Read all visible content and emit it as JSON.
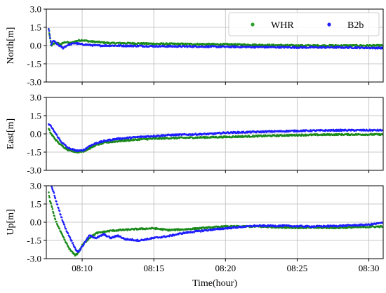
{
  "chart_data": {
    "type": "scatter",
    "xlabel": "Time(hour)",
    "x_range": [
      "08:07:30",
      "08:31:00"
    ],
    "x_ticks": [
      "08:10",
      "08:15",
      "08:20",
      "08:25",
      "08:30"
    ],
    "y_ticks": [
      "3.0",
      "1.5",
      "0.0",
      "-1.5",
      "-3.0"
    ],
    "legend": {
      "placement": "upper-right of first panel",
      "entries": [
        {
          "label": "WHR",
          "color": "#2ca02c"
        },
        {
          "label": "B2b",
          "color": "#1f1fff"
        }
      ]
    },
    "grid": true,
    "panels": [
      {
        "ylabel": "North[m]",
        "ylim": [
          -3.0,
          3.0
        ],
        "series": [
          {
            "name": "WHR",
            "color": "#1a8a1a",
            "points": [
              [
                "08:07:40",
                1.3
              ],
              [
                "08:07:50",
                0.0
              ],
              [
                "08:08:10",
                0.25
              ],
              [
                "08:08:30",
                0.1
              ],
              [
                "08:08:50",
                0.3
              ],
              [
                "08:09:10",
                0.2
              ],
              [
                "08:09:40",
                0.4
              ],
              [
                "08:10:00",
                0.45
              ],
              [
                "08:10:30",
                0.35
              ],
              [
                "08:11:00",
                0.3
              ],
              [
                "08:12:00",
                0.2
              ],
              [
                "08:13:00",
                0.2
              ],
              [
                "08:15:00",
                0.15
              ],
              [
                "08:20:00",
                0.1
              ],
              [
                "08:25:00",
                0.0
              ],
              [
                "08:28:00",
                0.0
              ],
              [
                "08:31:00",
                0.0
              ]
            ]
          },
          {
            "name": "B2b",
            "color": "#1f1fff",
            "points": [
              [
                "08:07:40",
                1.4
              ],
              [
                "08:07:50",
                0.1
              ],
              [
                "08:08:00",
                0.4
              ],
              [
                "08:08:20",
                0.05
              ],
              [
                "08:08:40",
                -0.2
              ],
              [
                "08:09:00",
                0.05
              ],
              [
                "08:09:30",
                0.2
              ],
              [
                "08:10:00",
                0.1
              ],
              [
                "08:11:00",
                0.0
              ],
              [
                "08:12:00",
                0.0
              ],
              [
                "08:15:00",
                -0.05
              ],
              [
                "08:20:00",
                -0.1
              ],
              [
                "08:25:00",
                -0.15
              ],
              [
                "08:28:00",
                -0.15
              ],
              [
                "08:31:00",
                -0.2
              ]
            ]
          }
        ]
      },
      {
        "ylabel": "East[m]",
        "ylim": [
          -3.0,
          3.0
        ],
        "series": [
          {
            "name": "WHR",
            "color": "#1a8a1a",
            "points": [
              [
                "08:07:40",
                0.4
              ],
              [
                "08:07:50",
                0.0
              ],
              [
                "08:08:10",
                -0.5
              ],
              [
                "08:08:30",
                -0.9
              ],
              [
                "08:09:00",
                -1.3
              ],
              [
                "08:09:30",
                -1.45
              ],
              [
                "08:09:50",
                -1.5
              ],
              [
                "08:10:10",
                -1.4
              ],
              [
                "08:10:30",
                -1.2
              ],
              [
                "08:11:00",
                -0.9
              ],
              [
                "08:11:40",
                -0.7
              ],
              [
                "08:12:30",
                -0.6
              ],
              [
                "08:14:00",
                -0.45
              ],
              [
                "08:16:00",
                -0.35
              ],
              [
                "08:20:00",
                -0.25
              ],
              [
                "08:25:00",
                -0.1
              ],
              [
                "08:28:00",
                -0.05
              ],
              [
                "08:31:00",
                -0.05
              ]
            ]
          },
          {
            "name": "B2b",
            "color": "#1f1fff",
            "points": [
              [
                "08:07:40",
                0.8
              ],
              [
                "08:07:50",
                0.6
              ],
              [
                "08:08:10",
                0.0
              ],
              [
                "08:08:30",
                -0.6
              ],
              [
                "08:09:00",
                -1.15
              ],
              [
                "08:09:30",
                -1.35
              ],
              [
                "08:09:50",
                -1.4
              ],
              [
                "08:10:10",
                -1.3
              ],
              [
                "08:10:30",
                -1.0
              ],
              [
                "08:11:00",
                -0.75
              ],
              [
                "08:11:40",
                -0.55
              ],
              [
                "08:12:30",
                -0.4
              ],
              [
                "08:14:00",
                -0.25
              ],
              [
                "08:16:00",
                -0.1
              ],
              [
                "08:19:00",
                0.0
              ],
              [
                "08:20:00",
                0.1
              ],
              [
                "08:25:00",
                0.25
              ],
              [
                "08:28:00",
                0.3
              ],
              [
                "08:31:00",
                0.3
              ]
            ]
          }
        ]
      },
      {
        "ylabel": "Up[m]",
        "ylim": [
          -3.0,
          3.0
        ],
        "series": [
          {
            "name": "WHR",
            "color": "#1a8a1a",
            "points": [
              [
                "08:07:40",
                2.4
              ],
              [
                "08:07:45",
                1.8
              ],
              [
                "08:07:50",
                1.5
              ],
              [
                "08:08:00",
                0.7
              ],
              [
                "08:08:10",
                0.1
              ],
              [
                "08:08:30",
                -0.8
              ],
              [
                "08:08:50",
                -1.6
              ],
              [
                "08:09:10",
                -2.3
              ],
              [
                "08:09:30",
                -2.7
              ],
              [
                "08:09:40",
                -2.6
              ],
              [
                "08:09:50",
                -2.3
              ],
              [
                "08:10:00",
                -1.9
              ],
              [
                "08:10:30",
                -1.3
              ],
              [
                "08:11:00",
                -0.9
              ],
              [
                "08:12:00",
                -0.7
              ],
              [
                "08:14:00",
                -0.55
              ],
              [
                "08:15:00",
                -0.5
              ],
              [
                "08:16:00",
                -0.65
              ],
              [
                "08:17:00",
                -0.6
              ],
              [
                "08:20:00",
                -0.35
              ],
              [
                "08:22:00",
                -0.35
              ],
              [
                "08:25:00",
                -0.45
              ],
              [
                "08:28:00",
                -0.45
              ],
              [
                "08:31:00",
                -0.35
              ]
            ]
          },
          {
            "name": "B2b",
            "color": "#1f1fff",
            "points": [
              [
                "08:07:50",
                3.0
              ],
              [
                "08:08:00",
                2.5
              ],
              [
                "08:08:10",
                1.8
              ],
              [
                "08:08:30",
                0.6
              ],
              [
                "08:08:50",
                -0.5
              ],
              [
                "08:09:10",
                -1.3
              ],
              [
                "08:09:30",
                -2.1
              ],
              [
                "08:09:40",
                -2.45
              ],
              [
                "08:09:50",
                -2.3
              ],
              [
                "08:10:10",
                -1.7
              ],
              [
                "08:10:30",
                -1.1
              ],
              [
                "08:11:00",
                -1.3
              ],
              [
                "08:11:30",
                -1.0
              ],
              [
                "08:12:00",
                -1.3
              ],
              [
                "08:12:30",
                -1.1
              ],
              [
                "08:13:00",
                -1.4
              ],
              [
                "08:14:00",
                -1.5
              ],
              [
                "08:15:00",
                -1.3
              ],
              [
                "08:16:00",
                -1.15
              ],
              [
                "08:17:00",
                -0.9
              ],
              [
                "08:18:00",
                -0.75
              ],
              [
                "08:20:00",
                -0.5
              ],
              [
                "08:22:00",
                -0.3
              ],
              [
                "08:24:00",
                -0.3
              ],
              [
                "08:26:00",
                -0.35
              ],
              [
                "08:28:00",
                -0.3
              ],
              [
                "08:30:00",
                -0.2
              ],
              [
                "08:31:00",
                -0.05
              ]
            ]
          }
        ]
      }
    ]
  }
}
